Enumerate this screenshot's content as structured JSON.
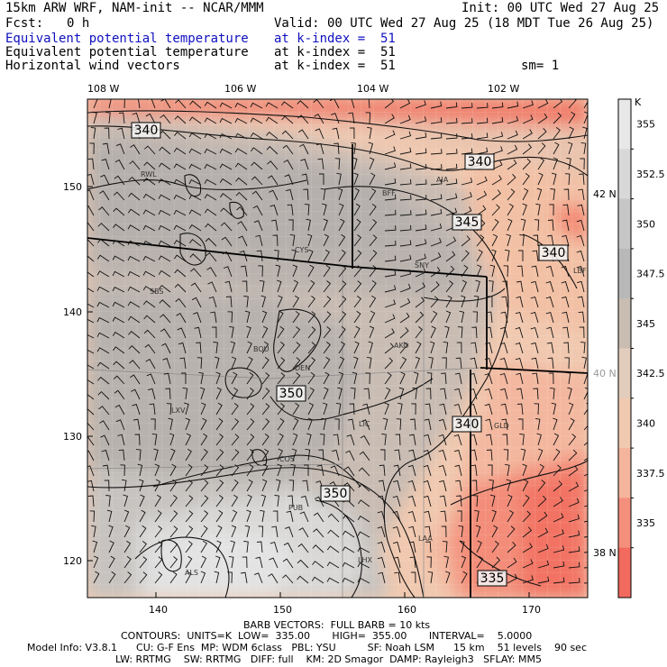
{
  "header": {
    "model_title": "15km ARW WRF, NAM-init -- NCAR/MMM",
    "init": "Init: 00 UTC Wed 27 Aug 25",
    "fcst_label": "Fcst:",
    "fcst_value": "0 h",
    "valid": "Valid: 00 UTC Wed 27 Aug 25 (18 MDT Tue 26 Aug 25)",
    "fields": [
      {
        "name": "Equivalent potential temperature",
        "level": "at k-index =  51",
        "color": "#1010c0"
      },
      {
        "name": "Equivalent potential temperature",
        "level": "at k-index =  51",
        "color": "#000000"
      },
      {
        "name": "Horizontal wind vectors",
        "level": "at k-index =  51",
        "color": "#000000"
      }
    ],
    "smoothing": "sm= 1"
  },
  "map": {
    "lon_labels": [
      "108 W",
      "106 W",
      "104 W",
      "102 W"
    ],
    "lat_labels": [
      "42 N",
      "40 N",
      "38 N"
    ],
    "x_ticks": [
      "140",
      "150",
      "160",
      "170"
    ],
    "y_ticks": [
      "150",
      "140",
      "130",
      "120"
    ],
    "contour_labels": [
      "340",
      "340",
      "345",
      "340",
      "350",
      "340",
      "350",
      "335"
    ],
    "stations": [
      "RWL",
      "BFF",
      "AIA",
      "CYS",
      "SNY",
      "SBS",
      "BOU",
      "DEN",
      "AKO",
      "LXV",
      "LIC",
      "GLD",
      "COS",
      "PUB",
      "LHX",
      "LAA",
      "ALS",
      "LBF"
    ]
  },
  "colorbar": {
    "unit": "K",
    "labels": [
      "355",
      "352.5",
      "350",
      "347.5",
      "345",
      "342.5",
      "340",
      "337.5",
      "335"
    ],
    "colors": [
      "#e8e8e8",
      "#d8d8d8",
      "#c6c6c6",
      "#b8b8b8",
      "#c9bdb2",
      "#e2cdbc",
      "#f0c9b0",
      "#f5b59c",
      "#f48f7c",
      "#f26a5e"
    ]
  },
  "footer": {
    "barb_line": "BARB VECTORS:  FULL BARB = 10 kts",
    "contours_line": "CONTOURS:  UNITS=K  LOW=  335.00       HIGH=  355.00       INTERVAL=    5.0000",
    "model_line1": "Model Info: V3.8.1      CU: G-F Ens  MP: WDM 6class   PBL: YSU          SF: Noah LSM      15 km    51 levels    90 sec",
    "model_line2": "LW: RRTMG    SW: RRTMG   DIFF: full    KM: 2D Smagor  DAMP: Rayleigh3   SFLAY: MM5"
  }
}
